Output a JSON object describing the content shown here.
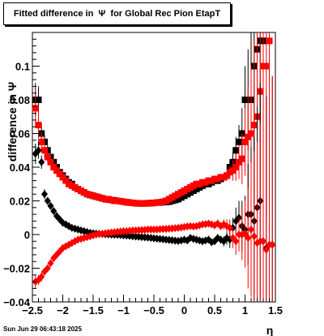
{
  "chart_data": {
    "type": "scatter",
    "title": "Fitted difference in  Ψ  for Global Rec Pion EtapT",
    "xlabel": "η",
    "ylabel": "difference in  Ψ",
    "xlim": [
      -2.5,
      1.5
    ],
    "ylim": [
      -0.04,
      0.12
    ],
    "x_ticks": [
      -2.5,
      -2,
      -1.5,
      -1,
      -0.5,
      0,
      0.5,
      1,
      1.5
    ],
    "x_tick_labels": [
      "−2.5",
      "−2",
      "−1.5",
      "−1",
      "−0.5",
      "0",
      "0.5",
      "1",
      "1.5"
    ],
    "y_ticks": [
      -0.04,
      -0.02,
      0,
      0.02,
      0.04,
      0.06,
      0.08,
      0.1
    ],
    "y_tick_labels": [
      "−0.04",
      "−0.02",
      "0",
      "0.02",
      "0.04",
      "0.06",
      "0.08",
      "0.1"
    ],
    "grid": false,
    "legend": "none",
    "timestamp": "Sun Jun 29 06:43:18 2025",
    "series": [
      {
        "marker": "square",
        "color": "#000000",
        "x": [
          -2.45,
          -2.4,
          -2.35,
          -2.3,
          -2.25,
          -2.2,
          -2.15,
          -2.1,
          -2.05,
          -2.0,
          -1.95,
          -1.9,
          -1.85,
          -1.8,
          -1.75,
          -1.7,
          -1.65,
          -1.6,
          -1.55,
          -1.5,
          -1.45,
          -1.4,
          -1.35,
          -1.3,
          -1.25,
          -1.2,
          -1.15,
          -1.1,
          -1.05,
          -1.0,
          -0.95,
          -0.9,
          -0.85,
          -0.8,
          -0.75,
          -0.7,
          -0.65,
          -0.6,
          -0.55,
          -0.5,
          -0.45,
          -0.4,
          -0.35,
          -0.3,
          -0.25,
          -0.2,
          -0.15,
          -0.1,
          -0.05,
          0.0,
          0.05,
          0.1,
          0.15,
          0.2,
          0.25,
          0.3,
          0.35,
          0.4,
          0.45,
          0.5,
          0.55,
          0.6,
          0.65,
          0.7,
          0.75,
          0.8,
          0.85,
          0.9,
          0.95,
          1.0,
          1.05,
          1.1,
          1.15,
          1.2,
          1.25,
          1.3
        ],
        "y": [
          0.08,
          0.08,
          0.06,
          0.055,
          0.05,
          0.046,
          0.043,
          0.04,
          0.037,
          0.035,
          0.033,
          0.031,
          0.03,
          0.028,
          0.027,
          0.026,
          0.025,
          0.024,
          0.0235,
          0.023,
          0.0225,
          0.022,
          0.0215,
          0.021,
          0.0208,
          0.0205,
          0.0203,
          0.02,
          0.0198,
          0.0195,
          0.0192,
          0.019,
          0.0188,
          0.0186,
          0.0185,
          0.0185,
          0.0185,
          0.0186,
          0.0187,
          0.0188,
          0.019,
          0.019,
          0.0192,
          0.0193,
          0.0195,
          0.02,
          0.0205,
          0.021,
          0.022,
          0.023,
          0.024,
          0.025,
          0.026,
          0.027,
          0.028,
          0.029,
          0.03,
          0.03,
          0.031,
          0.032,
          0.032,
          0.033,
          0.034,
          0.035,
          0.04,
          0.043,
          0.05,
          0.055,
          0.06,
          0.08,
          0.08,
          0.08,
          0.1,
          0.11,
          0.115,
          0.115
        ],
        "err": [
          0.01,
          0.008,
          0.006,
          0.004,
          0.003,
          0.002,
          0.002,
          0.0015,
          0.0015,
          0.001,
          0.001,
          0.001,
          0.001,
          0.001,
          0.001,
          0.001,
          0.001,
          0.001,
          0.001,
          0.001,
          0.001,
          0.001,
          0.001,
          0.001,
          0.001,
          0.001,
          0.001,
          0.001,
          0.001,
          0.001,
          0.001,
          0.001,
          0.001,
          0.001,
          0.001,
          0.001,
          0.001,
          0.001,
          0.001,
          0.001,
          0.001,
          0.001,
          0.001,
          0.001,
          0.001,
          0.001,
          0.001,
          0.001,
          0.001,
          0.001,
          0.001,
          0.001,
          0.001,
          0.001,
          0.001,
          0.001,
          0.001,
          0.001,
          0.001,
          0.0015,
          0.0015,
          0.002,
          0.002,
          0.003,
          0.004,
          0.006,
          0.008,
          0.01,
          0.015,
          0.02,
          0.03,
          0.04,
          0.05,
          0.06,
          0.06,
          0.06
        ]
      },
      {
        "marker": "square",
        "color": "#ff0000",
        "x": [
          -2.45,
          -2.4,
          -2.35,
          -2.3,
          -2.25,
          -2.2,
          -2.15,
          -2.1,
          -2.05,
          -2.0,
          -1.95,
          -1.9,
          -1.85,
          -1.8,
          -1.75,
          -1.7,
          -1.65,
          -1.6,
          -1.55,
          -1.5,
          -1.45,
          -1.4,
          -1.35,
          -1.3,
          -1.25,
          -1.2,
          -1.15,
          -1.1,
          -1.05,
          -1.0,
          -0.95,
          -0.9,
          -0.85,
          -0.8,
          -0.75,
          -0.7,
          -0.65,
          -0.6,
          -0.55,
          -0.5,
          -0.45,
          -0.4,
          -0.35,
          -0.3,
          -0.25,
          -0.2,
          -0.15,
          -0.1,
          -0.05,
          0.0,
          0.05,
          0.1,
          0.15,
          0.2,
          0.25,
          0.3,
          0.35,
          0.4,
          0.45,
          0.5,
          0.55,
          0.6,
          0.65,
          0.7,
          0.75,
          0.8,
          0.85,
          0.9,
          0.95,
          1.0,
          1.05,
          1.1,
          1.15,
          1.2,
          1.25,
          1.3,
          1.35,
          1.4
        ],
        "y": [
          0.075,
          0.065,
          0.055,
          0.05,
          0.046,
          0.043,
          0.04,
          0.038,
          0.036,
          0.034,
          0.032,
          0.03,
          0.029,
          0.028,
          0.027,
          0.026,
          0.025,
          0.024,
          0.0235,
          0.023,
          0.0225,
          0.022,
          0.0215,
          0.021,
          0.021,
          0.0205,
          0.02,
          0.02,
          0.0198,
          0.0195,
          0.0192,
          0.019,
          0.0188,
          0.0186,
          0.0185,
          0.0185,
          0.0185,
          0.0185,
          0.0186,
          0.0187,
          0.019,
          0.0192,
          0.0195,
          0.02,
          0.021,
          0.022,
          0.023,
          0.024,
          0.025,
          0.026,
          0.027,
          0.028,
          0.029,
          0.03,
          0.03,
          0.031,
          0.031,
          0.032,
          0.032,
          0.033,
          0.033,
          0.034,
          0.034,
          0.035,
          0.037,
          0.038,
          0.04,
          0.043,
          0.045,
          0.055,
          0.058,
          0.06,
          0.065,
          0.07,
          0.085,
          0.1,
          0.1,
          0.115
        ],
        "err": [
          0.01,
          0.008,
          0.006,
          0.004,
          0.003,
          0.002,
          0.002,
          0.0015,
          0.0015,
          0.001,
          0.001,
          0.001,
          0.001,
          0.001,
          0.001,
          0.001,
          0.001,
          0.001,
          0.001,
          0.001,
          0.001,
          0.001,
          0.001,
          0.001,
          0.001,
          0.001,
          0.001,
          0.001,
          0.001,
          0.001,
          0.001,
          0.001,
          0.001,
          0.001,
          0.001,
          0.001,
          0.001,
          0.001,
          0.001,
          0.001,
          0.001,
          0.001,
          0.001,
          0.001,
          0.001,
          0.001,
          0.001,
          0.001,
          0.001,
          0.001,
          0.001,
          0.001,
          0.001,
          0.001,
          0.001,
          0.001,
          0.001,
          0.001,
          0.001,
          0.0015,
          0.0015,
          0.002,
          0.002,
          0.003,
          0.004,
          0.006,
          0.008,
          0.01,
          0.015,
          0.02,
          0.03,
          0.04,
          0.05,
          0.06,
          0.07,
          0.08,
          0.09,
          0.1
        ]
      },
      {
        "marker": "diamond",
        "color": "#000000",
        "x": [
          -2.45,
          -2.4,
          -2.35,
          -2.3,
          -2.25,
          -2.2,
          -2.15,
          -2.1,
          -2.05,
          -2.0,
          -1.95,
          -1.9,
          -1.85,
          -1.8,
          -1.75,
          -1.7,
          -1.65,
          -1.6,
          -1.55,
          -1.5,
          -1.45,
          -1.4,
          -1.35,
          -1.3,
          -1.25,
          -1.2,
          -1.15,
          -1.1,
          -1.05,
          -1.0,
          -0.95,
          -0.9,
          -0.85,
          -0.8,
          -0.75,
          -0.7,
          -0.65,
          -0.6,
          -0.55,
          -0.5,
          -0.45,
          -0.4,
          -0.35,
          -0.3,
          -0.25,
          -0.2,
          -0.15,
          -0.1,
          -0.05,
          0.0,
          0.05,
          0.1,
          0.15,
          0.2,
          0.25,
          0.3,
          0.35,
          0.4,
          0.45,
          0.5,
          0.55,
          0.6,
          0.65,
          0.7,
          0.75,
          0.8,
          0.85,
          0.9,
          0.95,
          1.0,
          1.05,
          1.1,
          1.15,
          1.2,
          1.25,
          1.3,
          1.35,
          1.4,
          1.45
        ],
        "y": [
          0.048,
          0.05,
          0.043,
          0.024,
          0.02,
          0.017,
          0.014,
          0.011,
          0.009,
          0.007,
          0.006,
          0.005,
          0.004,
          0.0035,
          0.003,
          0.0025,
          0.002,
          0.0015,
          0.001,
          0.0008,
          0.0006,
          0.0005,
          0.0003,
          0.0002,
          0.0001,
          0.0,
          -0.0001,
          -0.0002,
          -0.0003,
          -0.0005,
          -0.0006,
          -0.0008,
          -0.001,
          -0.0012,
          -0.0013,
          -0.0015,
          -0.0016,
          -0.0018,
          -0.002,
          -0.0022,
          -0.0024,
          -0.0026,
          -0.0028,
          -0.003,
          -0.0032,
          -0.0034,
          -0.0036,
          -0.0038,
          -0.0035,
          -0.003,
          -0.0035,
          -0.002,
          -0.0025,
          -0.003,
          -0.0035,
          -0.004,
          -0.0035,
          -0.003,
          -0.0045,
          -0.004,
          -0.002,
          -0.003,
          -0.004,
          -0.002,
          -0.003,
          0.004,
          0.008,
          0.01,
          0.005,
          0.003,
          0.012,
          0.012,
          0.008,
          0.016,
          0.02,
          -0.004,
          -0.008,
          -0.006,
          -0.006
        ],
        "err": [
          0.006,
          0.005,
          0.004,
          0.003,
          0.002,
          0.002,
          0.0015,
          0.0015,
          0.001,
          0.001,
          0.001,
          0.001,
          0.001,
          0.001,
          0.001,
          0.001,
          0.001,
          0.001,
          0.001,
          0.001,
          0.001,
          0.001,
          0.001,
          0.001,
          0.001,
          0.001,
          0.001,
          0.001,
          0.001,
          0.001,
          0.001,
          0.001,
          0.001,
          0.001,
          0.001,
          0.001,
          0.001,
          0.001,
          0.001,
          0.001,
          0.001,
          0.001,
          0.001,
          0.001,
          0.001,
          0.001,
          0.001,
          0.001,
          0.001,
          0.001,
          0.001,
          0.001,
          0.001,
          0.001,
          0.001,
          0.001,
          0.001,
          0.001,
          0.0015,
          0.0015,
          0.002,
          0.002,
          0.003,
          0.004,
          0.005,
          0.006,
          0.008,
          0.01,
          0.015,
          0.02,
          0.03,
          0.04,
          0.05,
          0.06,
          0.07,
          0.08,
          0.09,
          0.1,
          0.1
        ]
      },
      {
        "marker": "diamond",
        "color": "#ff0000",
        "x": [
          -2.45,
          -2.4,
          -2.35,
          -2.3,
          -2.25,
          -2.2,
          -2.15,
          -2.1,
          -2.05,
          -2.0,
          -1.95,
          -1.9,
          -1.85,
          -1.8,
          -1.75,
          -1.7,
          -1.65,
          -1.6,
          -1.55,
          -1.5,
          -1.45,
          -1.4,
          -1.35,
          -1.3,
          -1.25,
          -1.2,
          -1.15,
          -1.1,
          -1.05,
          -1.0,
          -0.95,
          -0.9,
          -0.85,
          -0.8,
          -0.75,
          -0.7,
          -0.65,
          -0.6,
          -0.55,
          -0.5,
          -0.45,
          -0.4,
          -0.35,
          -0.3,
          -0.25,
          -0.2,
          -0.15,
          -0.1,
          -0.05,
          0.0,
          0.05,
          0.1,
          0.15,
          0.2,
          0.25,
          0.3,
          0.35,
          0.4,
          0.45,
          0.5,
          0.55,
          0.6,
          0.65,
          0.7,
          0.75,
          0.8,
          0.85,
          0.9,
          0.95,
          1.0,
          1.05,
          1.1,
          1.15,
          1.2,
          1.25,
          1.3,
          1.35,
          1.4,
          1.45
        ],
        "y": [
          -0.028,
          -0.027,
          -0.025,
          -0.022,
          -0.02,
          -0.017,
          -0.014,
          -0.012,
          -0.01,
          -0.008,
          -0.007,
          -0.006,
          -0.005,
          -0.004,
          -0.003,
          -0.0025,
          -0.002,
          -0.0015,
          -0.001,
          -0.0005,
          0.0,
          0.0003,
          0.0005,
          0.0008,
          0.001,
          0.0012,
          0.0014,
          0.0016,
          0.0018,
          0.002,
          0.002,
          0.0022,
          0.0024,
          0.0025,
          0.0026,
          0.0027,
          0.0028,
          0.003,
          0.003,
          0.003,
          0.003,
          0.0032,
          0.0033,
          0.0034,
          0.0035,
          0.0036,
          0.0038,
          0.004,
          0.0042,
          0.0045,
          0.0048,
          0.005,
          0.0048,
          0.005,
          0.0055,
          0.006,
          0.0062,
          0.0065,
          0.006,
          0.0055,
          0.0065,
          0.005,
          0.006,
          0.005,
          0.004,
          -0.002,
          -0.004,
          0.0,
          0.0,
          0.0005,
          -0.002,
          0.003,
          -0.001,
          -0.005,
          -0.004,
          -0.004,
          -0.009,
          -0.006,
          -0.006
        ],
        "err": [
          0.004,
          0.003,
          0.003,
          0.002,
          0.002,
          0.002,
          0.0015,
          0.0015,
          0.001,
          0.001,
          0.001,
          0.001,
          0.001,
          0.001,
          0.001,
          0.001,
          0.001,
          0.001,
          0.001,
          0.001,
          0.001,
          0.001,
          0.001,
          0.001,
          0.001,
          0.001,
          0.001,
          0.001,
          0.001,
          0.001,
          0.001,
          0.001,
          0.001,
          0.001,
          0.001,
          0.001,
          0.001,
          0.001,
          0.001,
          0.001,
          0.001,
          0.001,
          0.001,
          0.001,
          0.001,
          0.001,
          0.001,
          0.001,
          0.001,
          0.001,
          0.001,
          0.001,
          0.001,
          0.001,
          0.001,
          0.001,
          0.001,
          0.001,
          0.0015,
          0.0015,
          0.002,
          0.002,
          0.003,
          0.004,
          0.005,
          0.006,
          0.008,
          0.01,
          0.015,
          0.02,
          0.03,
          0.04,
          0.05,
          0.06,
          0.07,
          0.08,
          0.09,
          0.1,
          0.1
        ]
      }
    ]
  }
}
